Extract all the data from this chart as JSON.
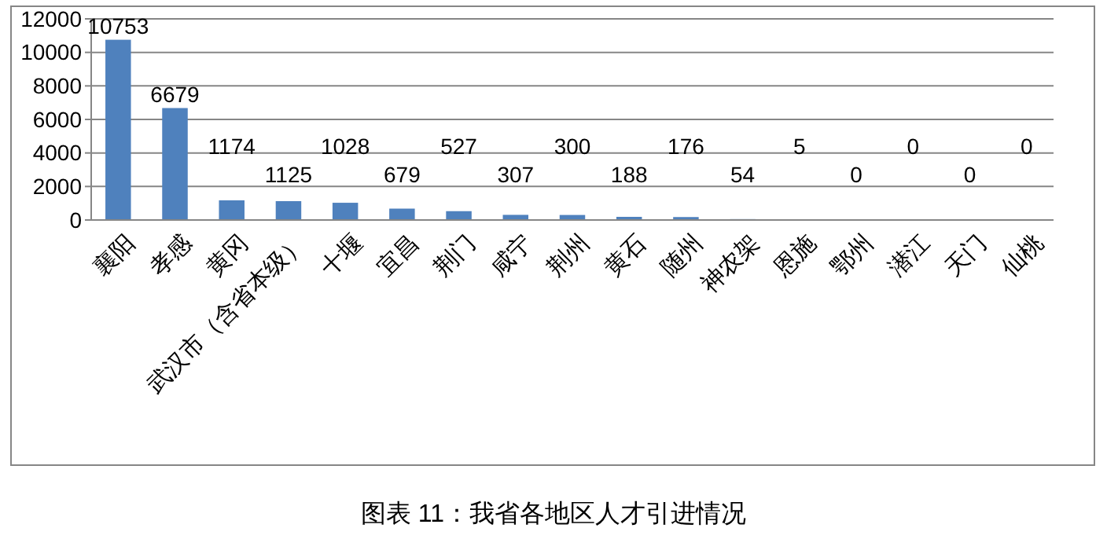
{
  "chart_data": {
    "type": "bar",
    "categories": [
      "襄阳",
      "孝感",
      "黄冈",
      "武汉市（含省本级）",
      "十堰",
      "宜昌",
      "荆门",
      "咸宁",
      "荆州",
      "黄石",
      "随州",
      "神农架",
      "恩施",
      "鄂州",
      "潜江",
      "天门",
      "仙桃"
    ],
    "values": [
      10753,
      6679,
      1174,
      1125,
      1028,
      679,
      527,
      307,
      300,
      188,
      176,
      54,
      5,
      0,
      0,
      0,
      0
    ],
    "color": "#4f81bd",
    "ylim": [
      0,
      12000
    ],
    "yticks": [
      0,
      2000,
      4000,
      6000,
      8000,
      10000,
      12000
    ],
    "grid": "y",
    "data_labels": true,
    "annotations": [
      "图表 11：我省各地区人才引进情况"
    ]
  }
}
